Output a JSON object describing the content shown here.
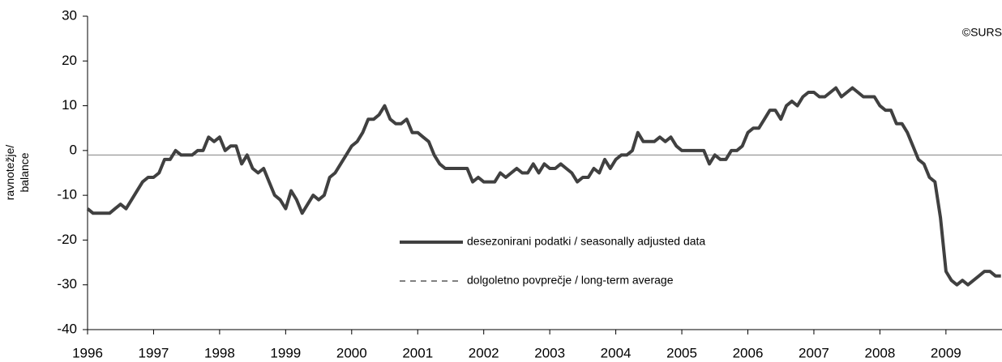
{
  "chart_data": {
    "type": "line",
    "y_label": [
      "ravnotežje/",
      "balance"
    ],
    "annotation": "©SURS",
    "categories": [
      "1996",
      null,
      null,
      null,
      null,
      null,
      null,
      null,
      null,
      null,
      null,
      null,
      "1997",
      null,
      null,
      null,
      null,
      null,
      null,
      null,
      null,
      null,
      null,
      null,
      "1998",
      null,
      null,
      null,
      null,
      null,
      null,
      null,
      null,
      null,
      null,
      null,
      "1999",
      null,
      null,
      null,
      null,
      null,
      null,
      null,
      null,
      null,
      null,
      null,
      "2000",
      null,
      null,
      null,
      null,
      null,
      null,
      null,
      null,
      null,
      null,
      null,
      "2001",
      null,
      null,
      null,
      null,
      null,
      null,
      null,
      null,
      null,
      null,
      null,
      "2002",
      null,
      null,
      null,
      null,
      null,
      null,
      null,
      null,
      null,
      null,
      null,
      "2003",
      null,
      null,
      null,
      null,
      null,
      null,
      null,
      null,
      null,
      null,
      null,
      "2004",
      null,
      null,
      null,
      null,
      null,
      null,
      null,
      null,
      null,
      null,
      null,
      "2005",
      null,
      null,
      null,
      null,
      null,
      null,
      null,
      null,
      null,
      null,
      null,
      "2006",
      null,
      null,
      null,
      null,
      null,
      null,
      null,
      null,
      null,
      null,
      null,
      "2007",
      null,
      null,
      null,
      null,
      null,
      null,
      null,
      null,
      null,
      null,
      null,
      "2008",
      null,
      null,
      null,
      null,
      null,
      null,
      null,
      null,
      null,
      null,
      null,
      "2009",
      null,
      null,
      null,
      null,
      null,
      null,
      null,
      null,
      null,
      null
    ],
    "series": [
      {
        "name": "desezonirani podatki / seasonally adjusted data",
        "color": "#404040",
        "values": [
          -13,
          -14,
          -14,
          -14,
          -14,
          -13,
          -12,
          -13,
          -11,
          -9,
          -7,
          -6,
          -6,
          -5,
          -2,
          -2,
          0,
          -1,
          -1,
          -1,
          0,
          0,
          3,
          2,
          3,
          0,
          1,
          1,
          -3,
          -1,
          -4,
          -5,
          -4,
          -7,
          -10,
          -11,
          -13,
          -9,
          -11,
          -14,
          -12,
          -10,
          -11,
          -10,
          -6,
          -5,
          -3,
          -1,
          1,
          2,
          4,
          7,
          7,
          8,
          10,
          7,
          6,
          6,
          7,
          4,
          4,
          3,
          2,
          -1,
          -3,
          -4,
          -4,
          -4,
          -4,
          -4,
          -7,
          -6,
          -7,
          -7,
          -7,
          -5,
          -6,
          -5,
          -4,
          -5,
          -5,
          -3,
          -5,
          -3,
          -4,
          -4,
          -3,
          -4,
          -5,
          -7,
          -6,
          -6,
          -4,
          -5,
          -2,
          -4,
          -2,
          -1,
          -1,
          0,
          4,
          2,
          2,
          2,
          3,
          2,
          3,
          1,
          0,
          0,
          0,
          0,
          0,
          -3,
          -1,
          -2,
          -2,
          0,
          0,
          1,
          4,
          5,
          5,
          7,
          9,
          9,
          7,
          10,
          11,
          10,
          12,
          13,
          13,
          12,
          12,
          13,
          14,
          12,
          13,
          14,
          13,
          12,
          12,
          12,
          10,
          9,
          9,
          6,
          6,
          4,
          1,
          -2,
          -3,
          -6,
          -7,
          -15,
          -27,
          -29,
          -30,
          -29,
          -30,
          -29,
          -28,
          -27,
          -27,
          -28,
          -28
        ]
      }
    ],
    "reference_line": {
      "name": "dolgoletno povprečje / long-term average",
      "value": -1,
      "color": "#808080"
    },
    "ylim": [
      -40,
      30
    ],
    "yticks": [
      -40,
      -30,
      -20,
      -10,
      0,
      10,
      20,
      30
    ]
  }
}
